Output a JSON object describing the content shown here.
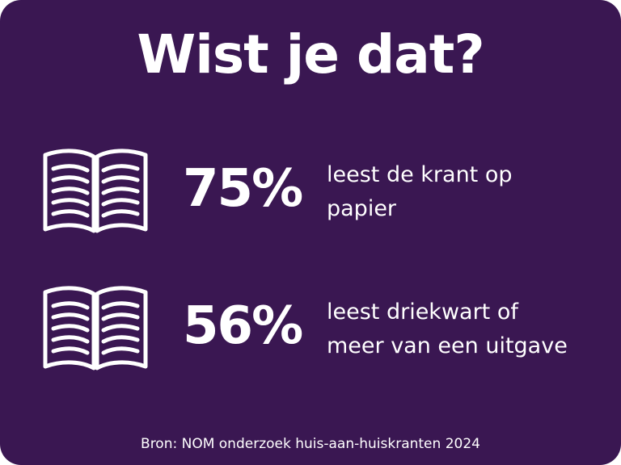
{
  "title": "Wist je dat?",
  "colors": {
    "background": "#3a1752",
    "text": "#ffffff"
  },
  "stats": [
    {
      "icon": "open-book-icon",
      "value": "75%",
      "desc_line1": "leest de krant op",
      "desc_line2": "papier"
    },
    {
      "icon": "open-book-icon",
      "value": "56%",
      "desc_line1": "leest driekwart of",
      "desc_line2": "meer van een uitgave"
    }
  ],
  "source": "Bron: NOM onderzoek huis-aan-huiskranten 2024"
}
